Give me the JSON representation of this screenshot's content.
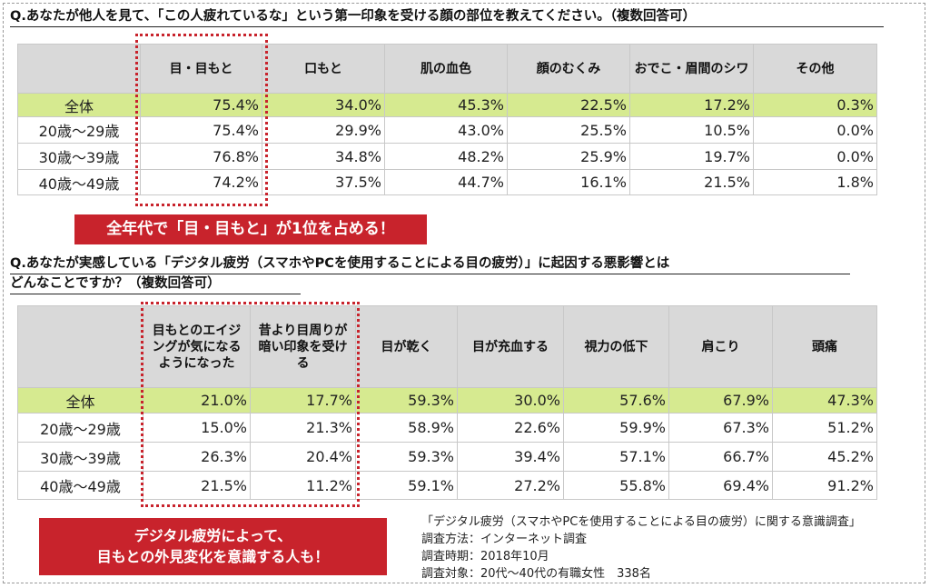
{
  "q1": {
    "title": "Q.あなたが他人を見て、「この人疲れているな」という第一印象を受ける顔の部位を教えてください。（複数回答可）",
    "headers": [
      "",
      "目・目もと",
      "口もと",
      "肌の血色",
      "顔のむくみ",
      "おでこ・眉間のシワ",
      "その他"
    ],
    "rows": [
      {
        "label": "全体",
        "values": [
          "75.4%",
          "34.0%",
          "45.3%",
          "22.5%",
          "17.2%",
          "0.3%"
        ]
      },
      {
        "label": "20歳～29歳",
        "values": [
          "75.4%",
          "29.9%",
          "43.0%",
          "25.5%",
          "10.5%",
          "0.0%"
        ]
      },
      {
        "label": "30歳～39歳",
        "values": [
          "76.8%",
          "34.8%",
          "48.2%",
          "25.9%",
          "19.7%",
          "0.0%"
        ]
      },
      {
        "label": "40歳～49歳",
        "values": [
          "74.2%",
          "37.5%",
          "44.7%",
          "16.1%",
          "21.5%",
          "1.8%"
        ]
      }
    ],
    "callout": "全年代で「目・目もと」が1位を占める！"
  },
  "q2": {
    "title_line1": "Q.あなたが実感している「デジタル疲労（スマホやPCを使用することによる目の疲労）」に起因する悪影響とは",
    "title_line2": "どんなことですか？（複数回答可）",
    "headers": [
      "",
      "目もとのエイジングが気になるようになった",
      "昔より目周りが暗い印象を受ける",
      "目が乾く",
      "目が充血する",
      "視力の低下",
      "肩こり",
      "頭痛"
    ],
    "rows": [
      {
        "label": "全体",
        "values": [
          "21.0%",
          "17.7%",
          "59.3%",
          "30.0%",
          "57.6%",
          "67.9%",
          "47.3%"
        ]
      },
      {
        "label": "20歳～29歳",
        "values": [
          "15.0%",
          "21.3%",
          "58.9%",
          "22.6%",
          "59.9%",
          "67.3%",
          "51.2%"
        ]
      },
      {
        "label": "30歳～39歳",
        "values": [
          "26.3%",
          "20.4%",
          "59.3%",
          "39.4%",
          "57.1%",
          "66.7%",
          "45.2%"
        ]
      },
      {
        "label": "40歳～49歳",
        "values": [
          "21.5%",
          "11.2%",
          "59.1%",
          "27.2%",
          "55.8%",
          "69.4%",
          "91.2%"
        ]
      }
    ],
    "callout_line1": "デジタル疲労によって、",
    "callout_line2": "目もとの外見変化を意識する人も！"
  },
  "survey": {
    "name": "「デジタル疲労（スマホやPCを使用することによる目の疲労）に関する意識調査」",
    "method": "調査方法：インターネット調査",
    "period": "調査時期：2018年10月",
    "target": "調査対象：20代～40代の有職女性　338名"
  },
  "colors": {
    "accent_red": "#c8232c",
    "header_gray": "#d9d9d9",
    "total_row_green": "#d6ea90"
  }
}
